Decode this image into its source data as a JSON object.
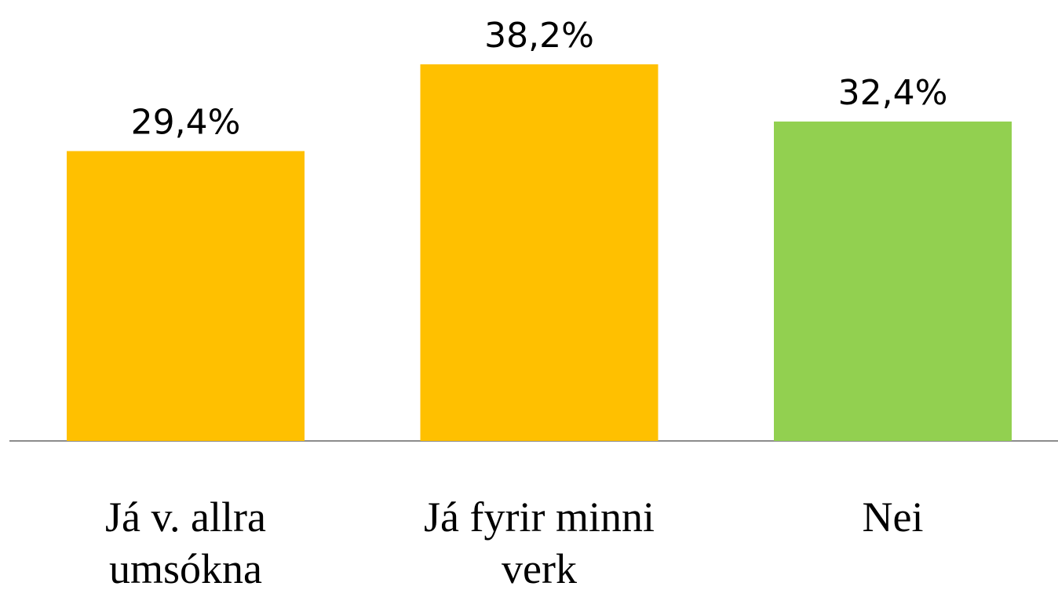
{
  "chart_data": {
    "type": "bar",
    "categories": [
      "Já v. allra umsókna",
      "Já fyrir minni verk",
      "Nei"
    ],
    "values": [
      29.4,
      38.2,
      32.4
    ],
    "value_labels": [
      "29,4%",
      "38,2%",
      "32,4%"
    ],
    "colors": [
      "#ffc000",
      "#ffc000",
      "#92d050"
    ]
  }
}
